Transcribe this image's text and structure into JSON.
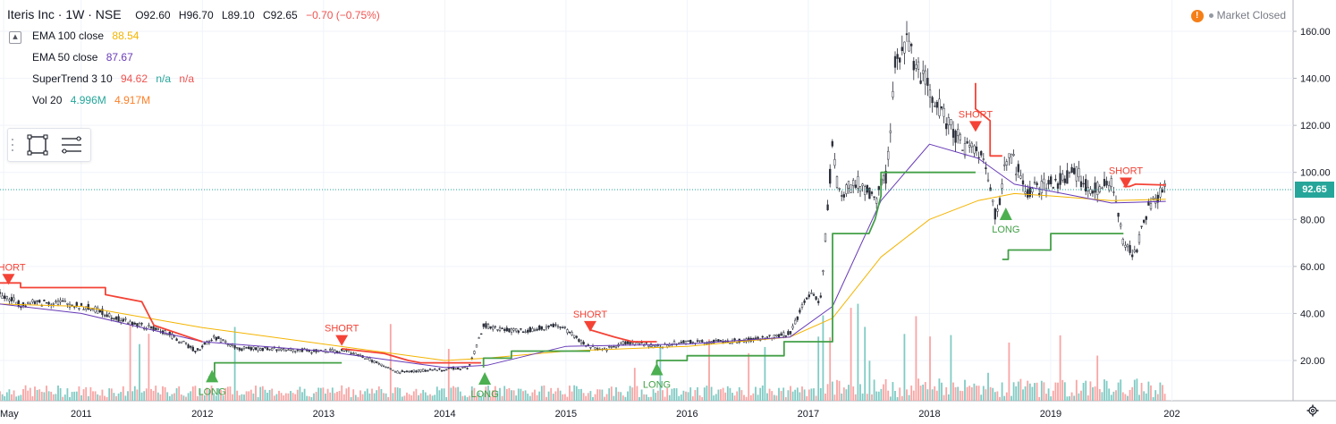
{
  "header": {
    "symbol": "Iteris Inc · 1W · NSE",
    "ohlc": {
      "open": "O92.60",
      "high": "H96.70",
      "low": "L89.10",
      "close": "C92.65",
      "change": "−0.70 (−0.75%)"
    }
  },
  "indicators": [
    {
      "label": "EMA 100 close",
      "values": [
        "88.54"
      ],
      "colors": [
        "#f4b400"
      ]
    },
    {
      "label": "EMA 50 close",
      "values": [
        "87.67"
      ],
      "colors": [
        "#673ab7"
      ]
    },
    {
      "label": "SuperTrend 3 10",
      "values": [
        "94.62",
        "n/a",
        "n/a"
      ],
      "colors": [
        "#ef5350",
        "#26a69a",
        "#ef5350"
      ]
    },
    {
      "label": "Vol 20",
      "values": [
        "4.996M",
        "4.917M"
      ],
      "colors": [
        "#26a69a",
        "#ff7f27"
      ]
    }
  ],
  "status": {
    "market": "Market Closed",
    "warn_icon": "!"
  },
  "last_price": "92.65",
  "colors": {
    "up": "#26a69a",
    "down": "#ef5350",
    "candle": "#2a2e39",
    "ema100": "#f4b400",
    "ema50": "#673ab7",
    "st_up": "#43a047",
    "st_down": "#f44336",
    "vol_up": "#80cbc4",
    "vol_down": "#f8a5a4"
  },
  "chart_data": {
    "type": "line",
    "y_axis": {
      "ticks": [
        "20.00",
        "40.00",
        "60.00",
        "80.00",
        "100.00",
        "120.00",
        "140.00",
        "160.00"
      ],
      "range": [
        8,
        165
      ]
    },
    "x_axis": {
      "ticks": [
        "May",
        "2011",
        "2012",
        "2013",
        "2014",
        "2015",
        "2016",
        "2017",
        "2018",
        "2019",
        "202"
      ],
      "range": [
        2010.33,
        2021.0
      ]
    },
    "price": {
      "x": [
        2010.33,
        2010.5,
        2010.8,
        2011.1,
        2011.4,
        2011.7,
        2011.95,
        2012.1,
        2012.3,
        2012.6,
        2012.9,
        2013.2,
        2013.4,
        2013.6,
        2013.9,
        2014.2,
        2014.32,
        2014.45,
        2014.7,
        2014.95,
        2015.15,
        2015.3,
        2015.5,
        2015.75,
        2016.0,
        2016.3,
        2016.6,
        2016.85,
        2017.0,
        2017.1,
        2017.2,
        2017.25,
        2017.4,
        2017.55,
        2017.65,
        2017.72,
        2017.8,
        2017.95,
        2018.1,
        2018.3,
        2018.45,
        2018.55,
        2018.65,
        2018.8,
        2019.0,
        2019.2,
        2019.35,
        2019.5,
        2019.6,
        2019.7,
        2019.8,
        2019.95
      ],
      "y": [
        48,
        44,
        45,
        42,
        36,
        32,
        24,
        30,
        25,
        25,
        24,
        24,
        20,
        15,
        16,
        17,
        35,
        33,
        33,
        35,
        27,
        24,
        28,
        26,
        28,
        28,
        29,
        32,
        48,
        45,
        112,
        90,
        96,
        88,
        100,
        150,
        155,
        140,
        125,
        110,
        108,
        80,
        110,
        92,
        95,
        100,
        92,
        95,
        70,
        65,
        85,
        92.65
      ]
    },
    "ema100": {
      "x": [
        2010.33,
        2011.0,
        2012.0,
        2013.0,
        2014.0,
        2014.35,
        2015.0,
        2016.0,
        2016.85,
        2017.2,
        2017.6,
        2018.0,
        2018.4,
        2018.7,
        2019.0,
        2019.5,
        2019.95
      ],
      "y": [
        44,
        43,
        34,
        27,
        20,
        21,
        24,
        26,
        30,
        38,
        64,
        80,
        88,
        91,
        90,
        88,
        88.54
      ]
    },
    "ema50": {
      "x": [
        2010.33,
        2011.0,
        2012.0,
        2013.0,
        2014.0,
        2014.35,
        2015.0,
        2016.0,
        2016.85,
        2017.2,
        2017.6,
        2018.0,
        2018.4,
        2018.7,
        2019.0,
        2019.5,
        2019.95
      ],
      "y": [
        44,
        40,
        28,
        24,
        17,
        18,
        26,
        27,
        30,
        43,
        88,
        112,
        106,
        95,
        92,
        87,
        87.67
      ]
    },
    "supertrend_down": [
      {
        "x": [
          2010.33,
          2010.5,
          2010.5,
          2011.0,
          2011.2,
          2011.2,
          2011.5,
          2011.6,
          2012.0
        ],
        "y": [
          53,
          53,
          51,
          51,
          51,
          48,
          45,
          35,
          28
        ]
      },
      {
        "x": [
          2013.15,
          2013.5,
          2013.7,
          2013.8,
          2014.1,
          2014.3
        ],
        "y": [
          25,
          23,
          20,
          19,
          19,
          19
        ]
      },
      {
        "x": [
          2015.2,
          2015.4,
          2015.55,
          2015.75
        ],
        "y": [
          33,
          30,
          28,
          28
        ]
      },
      {
        "x": [
          2018.38,
          2018.38,
          2018.5,
          2018.5,
          2018.6
        ],
        "y": [
          138,
          127,
          122,
          107,
          107
        ]
      },
      {
        "x": [
          2019.6,
          2019.65,
          2019.7,
          2019.95
        ],
        "y": [
          94,
          94,
          95,
          94.62
        ]
      }
    ],
    "supertrend_up": [
      {
        "x": [
          2012.05,
          2012.1,
          2012.1,
          2013.15
        ],
        "y": [
          13,
          13,
          19,
          19
        ]
      },
      {
        "x": [
          2014.32,
          2014.32,
          2014.55,
          2014.55,
          2015.2
        ],
        "y": [
          17,
          21,
          21,
          24,
          24
        ]
      },
      {
        "x": [
          2015.75,
          2015.75,
          2016.0,
          2016.0,
          2016.8,
          2016.8,
          2017.2,
          2017.2,
          2017.5,
          2017.55,
          2017.6,
          2017.6,
          2018.38
        ],
        "y": [
          18,
          20,
          20,
          22,
          22,
          28,
          28,
          74,
          74,
          80,
          90,
          100,
          100
        ]
      },
      {
        "x": [
          2018.6,
          2018.65,
          2018.65,
          2019.0,
          2019.0,
          2019.6
        ],
        "y": [
          63,
          63,
          67,
          67,
          74,
          74
        ]
      }
    ],
    "signals": [
      {
        "type": "SHORT",
        "x": 2010.4,
        "y": 53
      },
      {
        "type": "LONG",
        "x": 2012.08,
        "y": 13
      },
      {
        "type": "SHORT",
        "x": 2013.15,
        "y": 27
      },
      {
        "type": "LONG",
        "x": 2014.33,
        "y": 12
      },
      {
        "type": "SHORT",
        "x": 2015.2,
        "y": 33
      },
      {
        "type": "LONG",
        "x": 2015.75,
        "y": 16
      },
      {
        "type": "SHORT",
        "x": 2018.38,
        "y": 118
      },
      {
        "type": "LONG",
        "x": 2018.63,
        "y": 82
      },
      {
        "type": "SHORT",
        "x": 2019.62,
        "y": 94
      }
    ],
    "last_value": 92.65,
    "grid": true
  }
}
